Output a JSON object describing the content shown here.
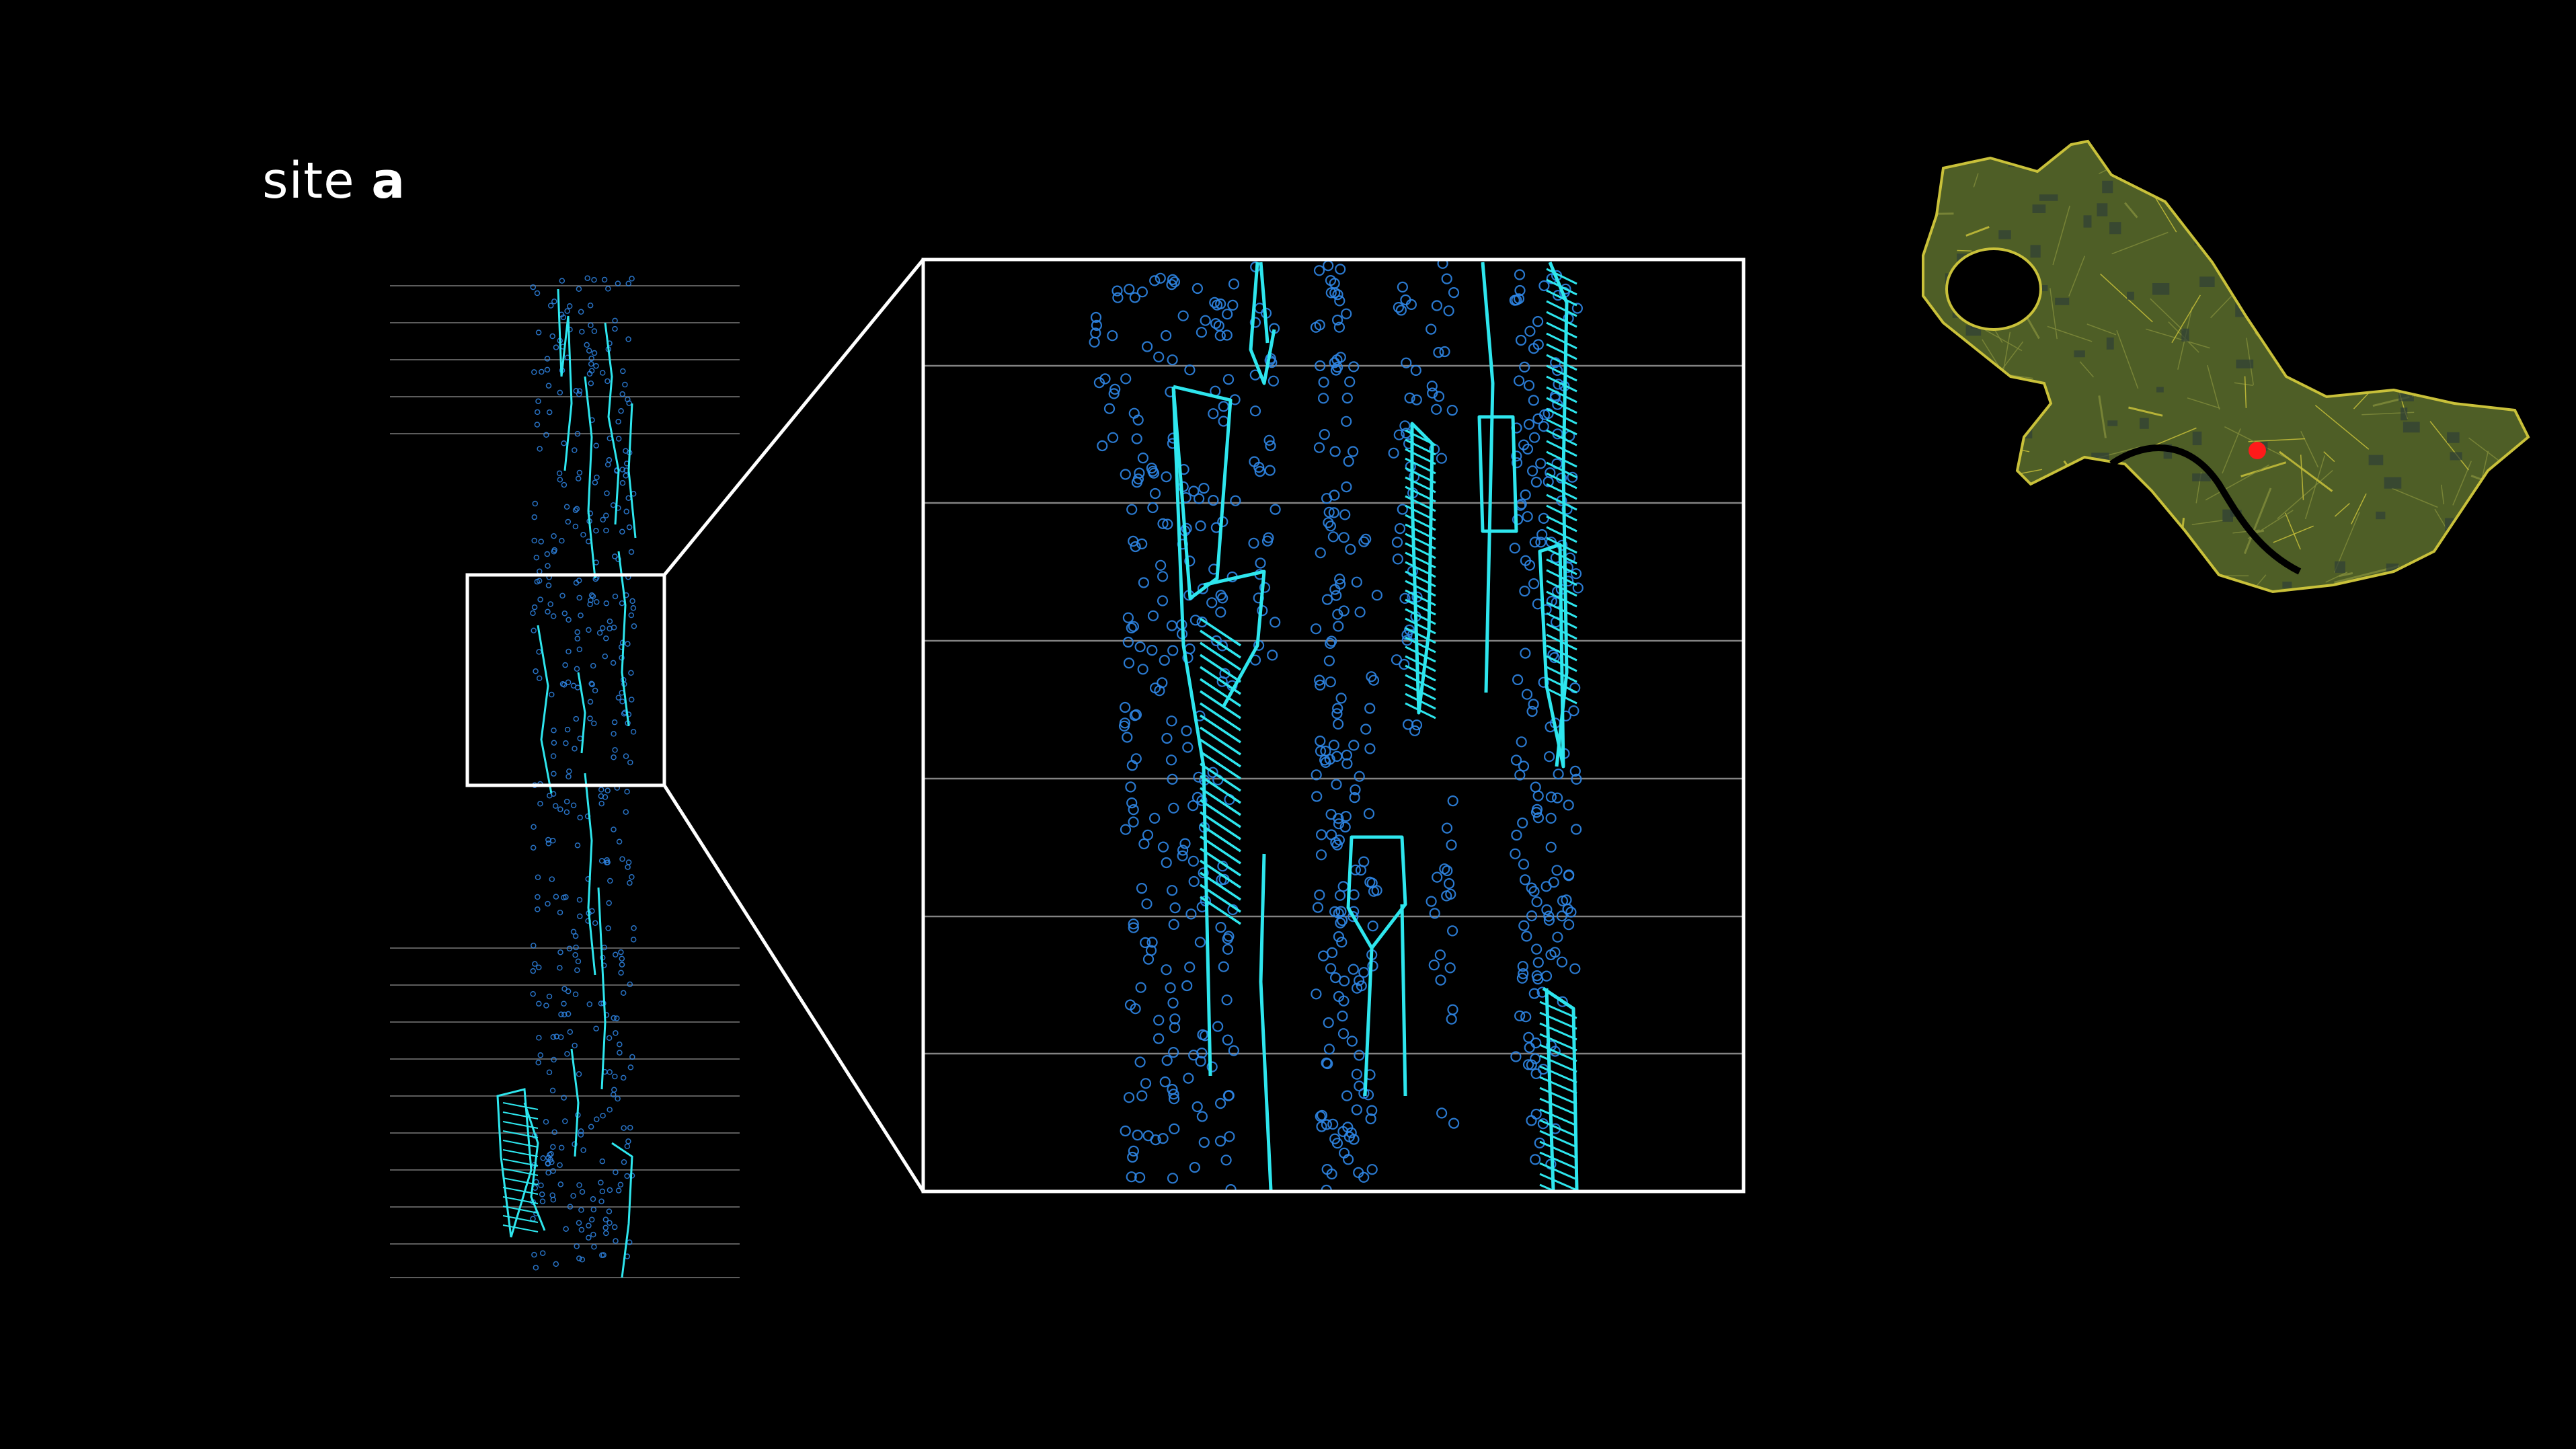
{
  "title": {
    "prefix": "site",
    "site_id": "a"
  },
  "colors": {
    "background": "#000000",
    "frame": "#ffffff",
    "grid_line": "#9a9a9a",
    "trajectory": "#2ee6ee",
    "detection_circle": "#2f86e6",
    "map_land": "#5a6a2a",
    "map_roads": "#c9c13a",
    "map_water": "#000000",
    "site_marker": "#ff1a1a"
  },
  "icons": {
    "site_marker": "red-dot-icon"
  }
}
